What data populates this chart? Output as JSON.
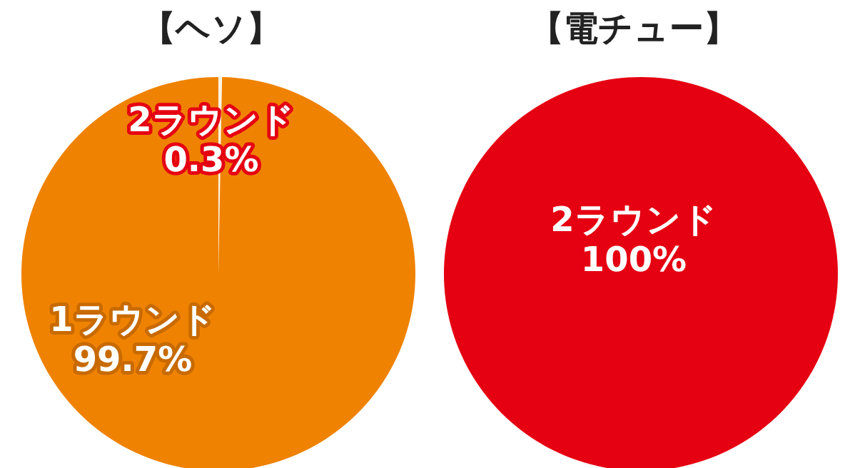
{
  "chart_data": [
    {
      "type": "pie",
      "title": "【ヘソ】",
      "categories": [
        "2ラウンド",
        "1ラウンド"
      ],
      "values": [
        0.3,
        99.7
      ],
      "colors": [
        "#fff4e2",
        "#ef8200"
      ],
      "value_labels": [
        "0.3%",
        "99.7%"
      ]
    },
    {
      "type": "pie",
      "title": "【電チュー】",
      "categories": [
        "2ラウンド"
      ],
      "values": [
        100
      ],
      "colors": [
        "#e50012"
      ],
      "value_labels": [
        "100%"
      ]
    }
  ]
}
